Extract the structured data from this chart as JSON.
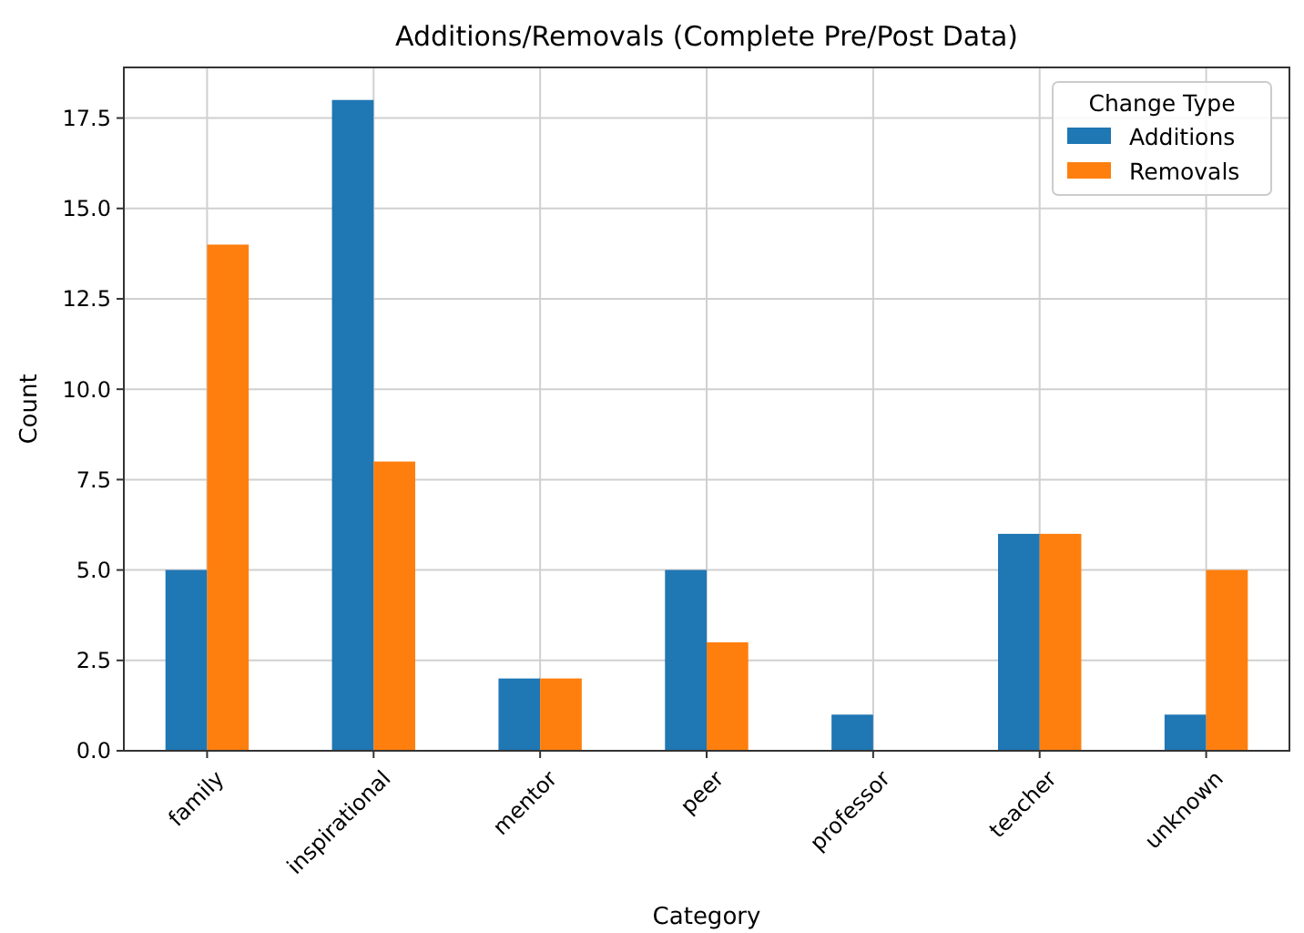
{
  "chart_data": {
    "type": "bar",
    "title": "Additions/Removals (Complete Pre/Post Data)",
    "xlabel": "Category",
    "ylabel": "Count",
    "categories": [
      "family",
      "inspirational",
      "mentor",
      "peer",
      "professor",
      "teacher",
      "unknown"
    ],
    "series": [
      {
        "name": "Additions",
        "color": "#1f77b4",
        "values": [
          5,
          18,
          2,
          5,
          1,
          6,
          1
        ]
      },
      {
        "name": "Removals",
        "color": "#ff7f0e",
        "values": [
          14,
          8,
          2,
          3,
          0,
          6,
          5
        ]
      }
    ],
    "ylim": [
      0,
      18.9
    ],
    "yticks": [
      {
        "value": 0,
        "label": "0.0"
      },
      {
        "value": 2.5,
        "label": "2.5"
      },
      {
        "value": 5,
        "label": "5.0"
      },
      {
        "value": 7.5,
        "label": "7.5"
      },
      {
        "value": 10,
        "label": "10.0"
      },
      {
        "value": 12.5,
        "label": "12.5"
      },
      {
        "value": 15,
        "label": "15.0"
      },
      {
        "value": 17.5,
        "label": "17.5"
      }
    ],
    "grid": true,
    "legend": "top right",
    "legend_title": "Change Type"
  }
}
